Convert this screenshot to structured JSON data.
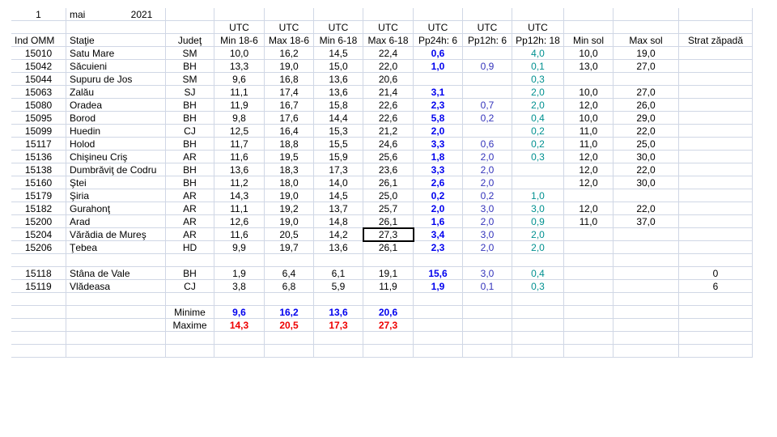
{
  "header": {
    "day": "1",
    "month": "mai",
    "year": "2021"
  },
  "utc_labels": [
    "UTC",
    "UTC",
    "UTC",
    "UTC",
    "UTC",
    "UTC",
    "UTC"
  ],
  "columns": [
    "Ind OMM",
    "Staţie",
    "Judeţ",
    "Min 18-6",
    "Max 18-6",
    "Min 6-18",
    "Max 6-18",
    "Pp24h: 6",
    "Pp12h: 6",
    "Pp12h: 18",
    "Min sol",
    "Max sol",
    "Strat zăpadă"
  ],
  "rows": [
    [
      "15010",
      "Satu Mare",
      "SM",
      "10,0",
      "16,2",
      "14,5",
      "22,4",
      "0,6",
      null,
      "4,0",
      "10,0",
      "19,0",
      null
    ],
    [
      "15042",
      "Săcuieni",
      "BH",
      "13,3",
      "19,0",
      "15,0",
      "22,0",
      "1,0",
      "0,9",
      "0,1",
      "13,0",
      "27,0",
      null
    ],
    [
      "15044",
      "Supuru de Jos",
      "SM",
      "9,6",
      "16,8",
      "13,6",
      "20,6",
      null,
      null,
      "0,3",
      null,
      null,
      null
    ],
    [
      "15063",
      "Zalău",
      "SJ",
      "11,1",
      "17,4",
      "13,6",
      "21,4",
      "3,1",
      null,
      "2,0",
      "10,0",
      "27,0",
      null
    ],
    [
      "15080",
      "Oradea",
      "BH",
      "11,9",
      "16,7",
      "15,8",
      "22,6",
      "2,3",
      "0,7",
      "2,0",
      "12,0",
      "26,0",
      null
    ],
    [
      "15095",
      "Borod",
      "BH",
      "9,8",
      "17,6",
      "14,4",
      "22,6",
      "5,8",
      "0,2",
      "0,4",
      "10,0",
      "29,0",
      null
    ],
    [
      "15099",
      "Huedin",
      "CJ",
      "12,5",
      "16,4",
      "15,3",
      "21,2",
      "2,0",
      null,
      "0,2",
      "11,0",
      "22,0",
      null
    ],
    [
      "15117",
      "Holod",
      "BH",
      "11,7",
      "18,8",
      "15,5",
      "24,6",
      "3,3",
      "0,6",
      "0,2",
      "11,0",
      "25,0",
      null
    ],
    [
      "15136",
      "Chişineu   Criş",
      "AR",
      "11,6",
      "19,5",
      "15,9",
      "25,6",
      "1,8",
      "2,0",
      "0,3",
      "12,0",
      "30,0",
      null
    ],
    [
      "15138",
      "Dumbrăviţ  de Codru",
      "BH",
      "13,6",
      "18,3",
      "17,3",
      "23,6",
      "3,3",
      "2,0",
      null,
      "12,0",
      "22,0",
      null
    ],
    [
      "15160",
      "Ştei",
      "BH",
      "11,2",
      "18,0",
      "14,0",
      "26,1",
      "2,6",
      "2,0",
      null,
      "12,0",
      "30,0",
      null
    ],
    [
      "15179",
      "Şiria",
      "AR",
      "14,3",
      "19,0",
      "14,5",
      "25,0",
      "0,2",
      "0,2",
      "1,0",
      null,
      null,
      null
    ],
    [
      "15182",
      "Gurahonţ",
      "AR",
      "11,1",
      "19,2",
      "13,7",
      "25,7",
      "2,0",
      "3,0",
      "3,0",
      "12,0",
      "22,0",
      null
    ],
    [
      "15200",
      "Arad",
      "AR",
      "12,6",
      "19,0",
      "14,8",
      "26,1",
      "1,6",
      "2,0",
      "0,9",
      "11,0",
      "37,0",
      null
    ],
    [
      "15204",
      "Vărădia de Mureş",
      "AR",
      "11,6",
      "20,5",
      "14,2",
      "27,3",
      "3,4",
      "3,0",
      "2,0",
      null,
      null,
      null
    ],
    [
      "15206",
      "Ţebea",
      "HD",
      "9,9",
      "19,7",
      "13,6",
      "26,1",
      "2,3",
      "2,0",
      "2,0",
      null,
      null,
      null
    ],
    null,
    [
      "15118",
      "Stâna de Vale",
      "BH",
      "1,9",
      "6,4",
      "6,1",
      "19,1",
      "15,6",
      "3,0",
      "0,4",
      null,
      null,
      "0"
    ],
    [
      "15119",
      "Vlădeasa",
      "CJ",
      "3,8",
      "6,8",
      "5,9",
      "11,9",
      "1,9",
      "0,1",
      "0,3",
      null,
      null,
      "6"
    ]
  ],
  "summary": [
    {
      "label": "Minime",
      "values": [
        "9,6",
        "16,2",
        "13,6",
        "20,6"
      ]
    },
    {
      "label": "Maxime",
      "values": [
        "14,3",
        "20,5",
        "17,3",
        "27,3"
      ]
    }
  ]
}
